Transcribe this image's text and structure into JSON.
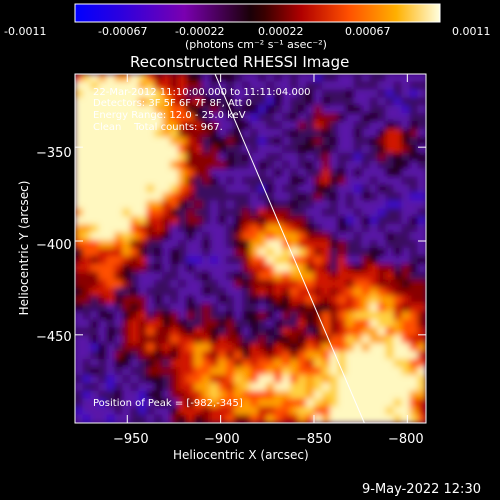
{
  "colorbar": {
    "ticks": [
      "-0.0011",
      "-0.00067",
      "-0.00022",
      "0.00022",
      "0.00067",
      "0.0011"
    ],
    "units": "(photons cm⁻² s⁻¹ asec⁻²)"
  },
  "plot": {
    "title": "Reconstructed RHESSI Image",
    "info_lines": [
      "22-Mar-2012 11:10:00.000 to 11:11:04.000",
      "Detectors: 3F 5F 6F 7F 8F, Att 0",
      "Energy Range: 12.0 - 25.0 keV",
      "Clean    Total counts: 967."
    ],
    "peak_text": "Position of Peak = [-982,-345]"
  },
  "chart_data": {
    "type": "heatmap",
    "title": "Reconstructed RHESSI Image",
    "xlabel": "Heliocentric X (arcsec)",
    "ylabel": "Heliocentric Y (arcsec)",
    "xlim": [
      -978,
      -790
    ],
    "ylim": [
      -497,
      -311
    ],
    "xticks": [
      -950,
      -900,
      -850,
      -800
    ],
    "yticks": [
      -350,
      -400,
      -450
    ],
    "xtick_labels": [
      "−950",
      "−900",
      "−850",
      "−800"
    ],
    "ytick_labels": [
      "−350",
      "−400",
      "−450"
    ],
    "colorbar_range": [
      -0.0011,
      0.0011
    ],
    "limb_line": [
      [
        -903,
        -311
      ],
      [
        -823,
        -497
      ]
    ],
    "peak_position": [
      -982,
      -345
    ]
  },
  "footer": {
    "timestamp": "9-May-2022 12:30"
  }
}
